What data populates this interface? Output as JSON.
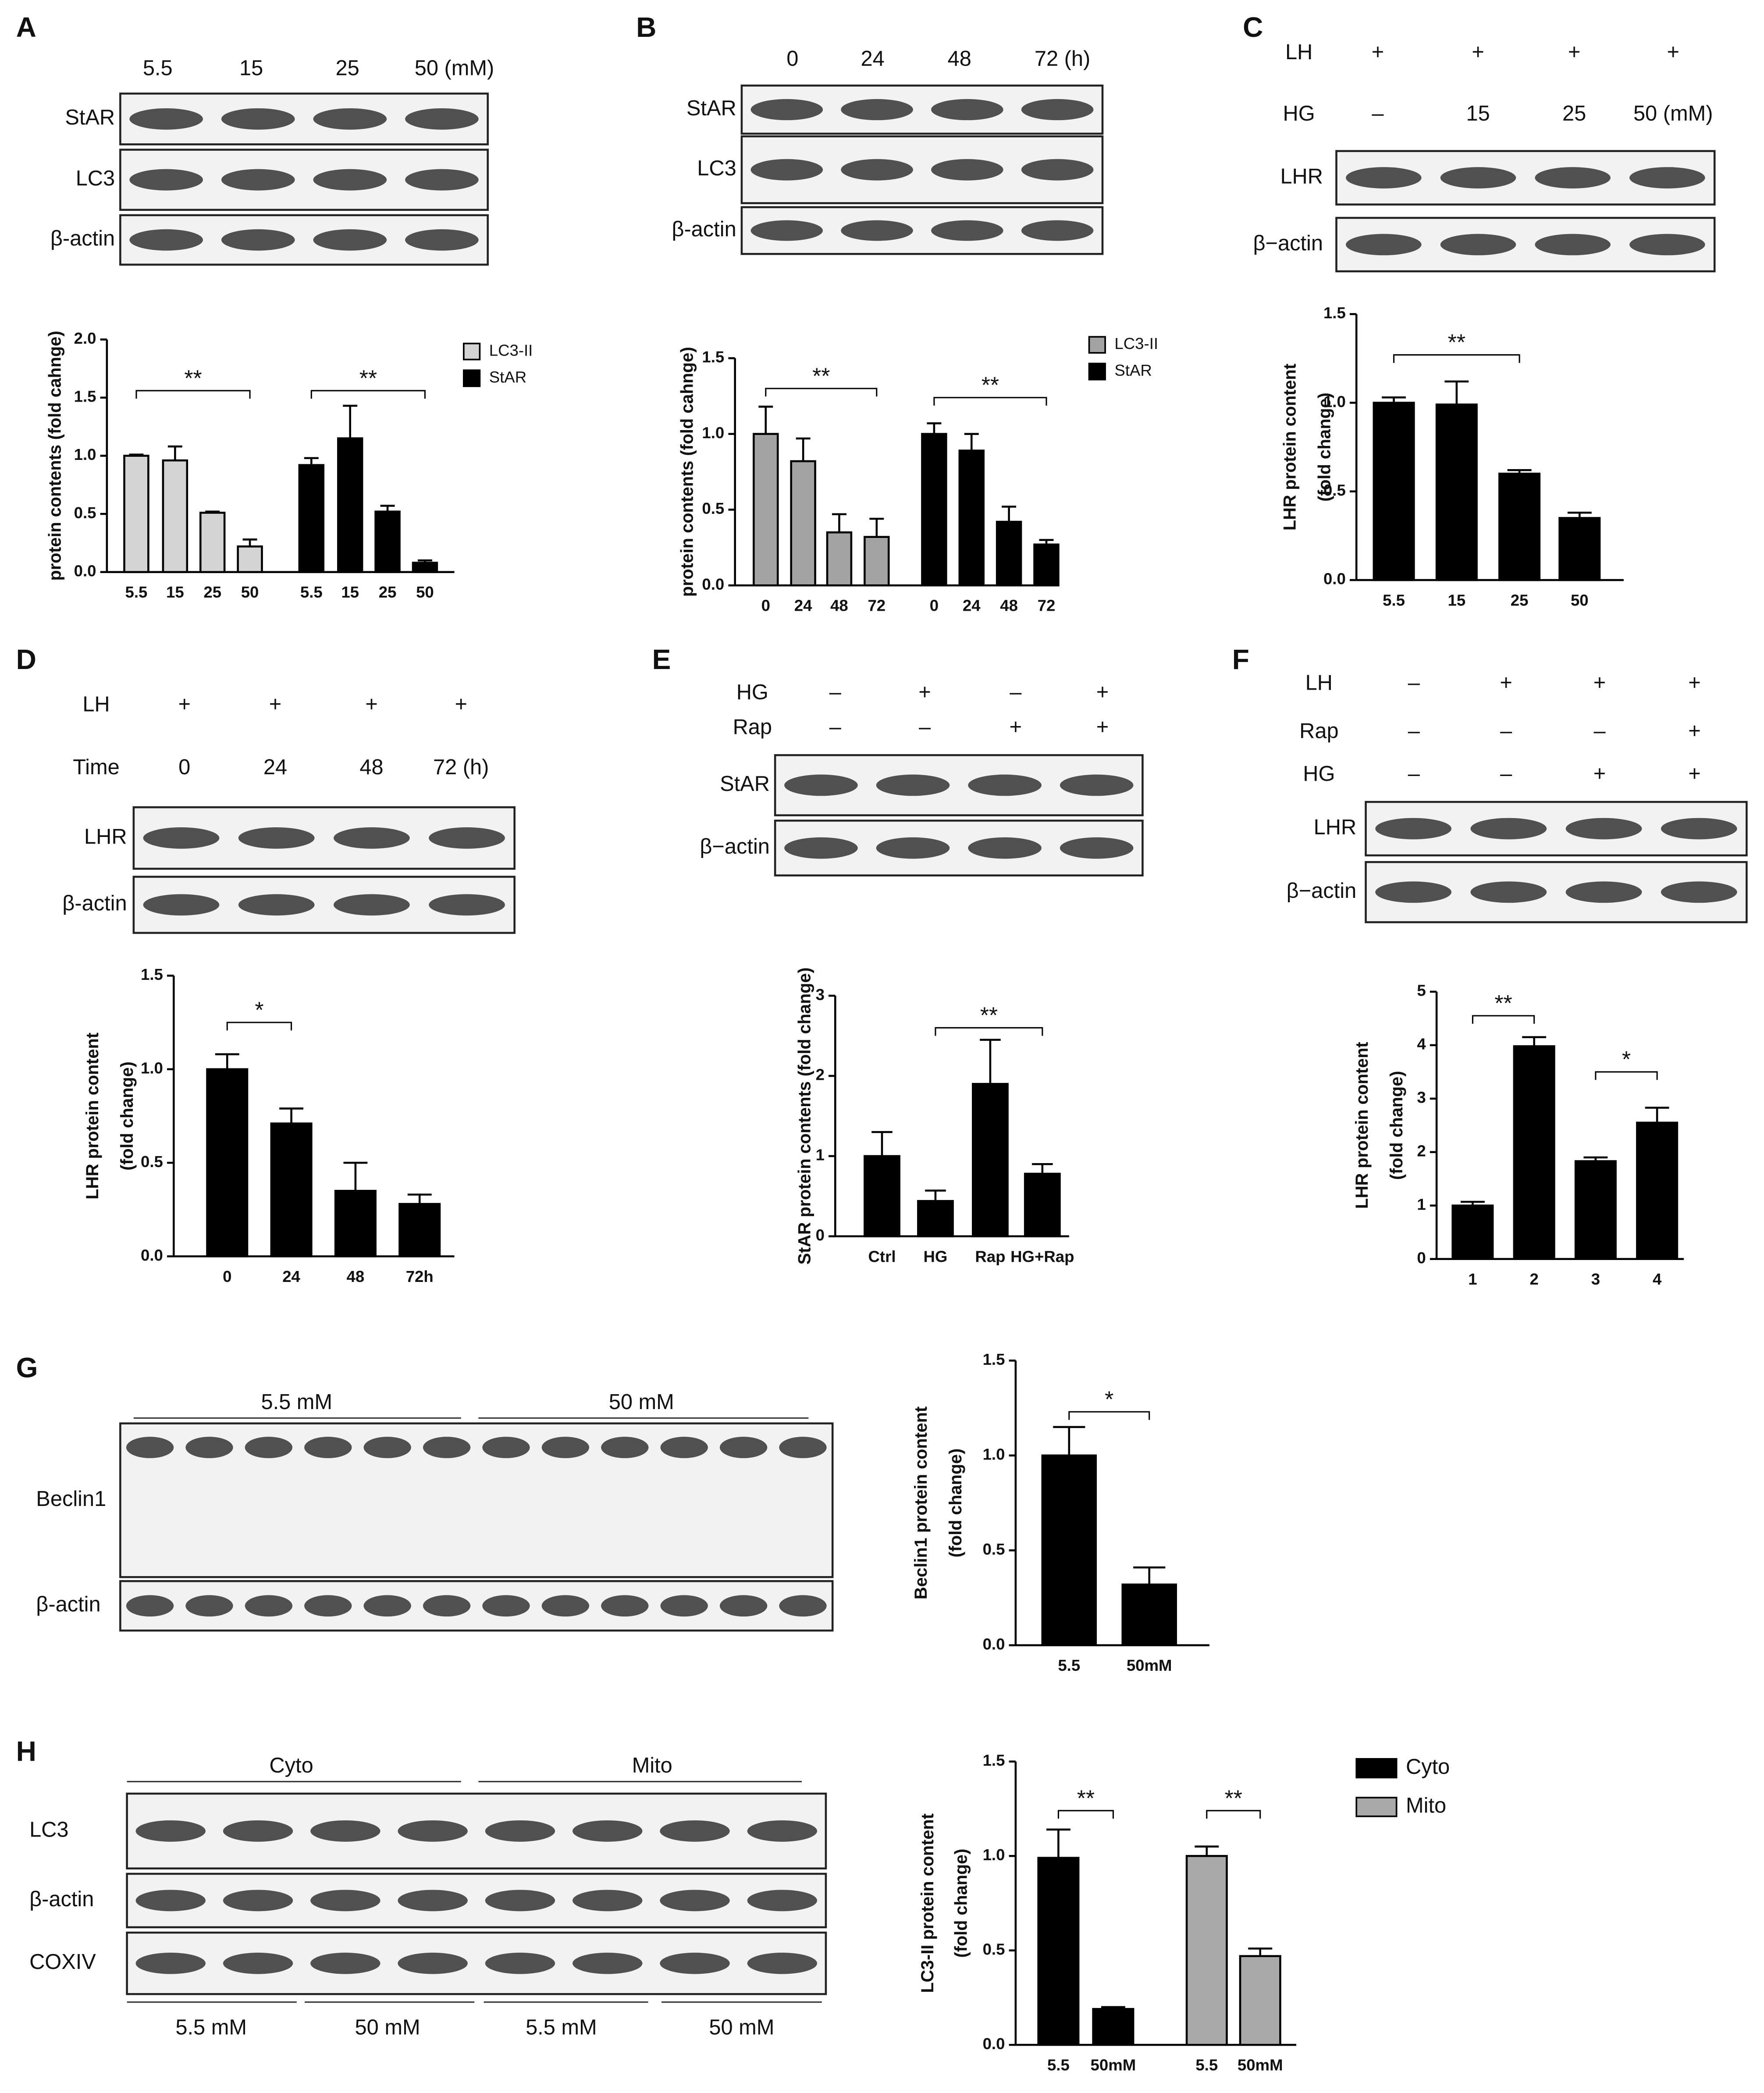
{
  "panels": [
    "A",
    "B",
    "C",
    "D",
    "E",
    "F",
    "G",
    "H"
  ],
  "blots": [
    {
      "columns": [
        "5.5",
        "15",
        "25",
        "50 (mM)"
      ],
      "rows": [
        "StAR",
        "LC3",
        "β-actin"
      ]
    },
    {
      "columns": [
        "0",
        "24",
        "48",
        "72 (h)"
      ],
      "rows": [
        "StAR",
        "LC3",
        "β-actin"
      ]
    },
    {
      "conditions": [
        {
          "name": "LH",
          "levels": [
            "+",
            "+",
            "+",
            "+"
          ]
        },
        {
          "name": "HG",
          "levels": [
            "–",
            "15",
            "25",
            "50 (mM)"
          ]
        }
      ],
      "rows": [
        "LHR",
        "β−actin"
      ]
    },
    {
      "conditions": [
        {
          "name": "LH",
          "levels": [
            "+",
            "+",
            "+",
            "+"
          ]
        },
        {
          "name": "Time",
          "levels": [
            "0",
            "24",
            "48",
            "72 (h)"
          ]
        }
      ],
      "rows": [
        "LHR",
        "β-actin"
      ]
    },
    {
      "conditions": [
        {
          "name": "HG",
          "levels": [
            "–",
            "+",
            "–",
            "+"
          ]
        },
        {
          "name": "Rap",
          "levels": [
            "–",
            "–",
            "+",
            "+"
          ]
        }
      ],
      "rows": [
        "StAR",
        "β−actin"
      ]
    },
    {
      "conditions": [
        {
          "name": "LH",
          "levels": [
            "–",
            "+",
            "+",
            "+"
          ]
        },
        {
          "name": "Rap",
          "levels": [
            "–",
            "–",
            "–",
            "+"
          ]
        },
        {
          "name": "HG",
          "levels": [
            "–",
            "–",
            "+",
            "+"
          ]
        }
      ],
      "rows": [
        "LHR",
        "β−actin"
      ]
    },
    {
      "groups": [
        "5.5 mM",
        "50 mM"
      ],
      "rows": [
        "Beclin1",
        "β-actin"
      ]
    },
    {
      "groups": [
        "Cyto",
        "Mito"
      ],
      "rows": [
        "LC3",
        "β-actin",
        "COXIV"
      ],
      "bottom_labels": [
        "5.5 mM",
        "50 mM",
        "5.5 mM",
        "50 mM"
      ]
    }
  ],
  "chart_data": [
    {
      "type": "bar",
      "ylabel": [
        "protein contents (fold cahnge)"
      ],
      "categories": [
        "5.5",
        "15",
        "25",
        "50"
      ],
      "series": [
        {
          "name": "LC3-II",
          "color": "#d4d4d4",
          "values": [
            1.0,
            0.96,
            0.51,
            0.22
          ],
          "errors": [
            0.01,
            0.12,
            0.01,
            0.06
          ]
        },
        {
          "name": "StAR",
          "color": "#000000",
          "values": [
            0.92,
            1.15,
            0.52,
            0.08
          ],
          "errors": [
            0.06,
            0.28,
            0.05,
            0.02
          ]
        }
      ],
      "ylim": [
        0,
        2
      ],
      "yticks": [
        {
          "value": 0,
          "label": "0.0"
        },
        {
          "value": 0.5,
          "label": "0.5"
        },
        {
          "value": 1,
          "label": "1.0"
        },
        {
          "value": 1.5,
          "label": "1.5"
        },
        {
          "value": 2,
          "label": "2.0"
        }
      ],
      "annotations": [
        "**",
        "**"
      ]
    },
    {
      "type": "bar",
      "ylabel": [
        "protein contents (fold cahnge)"
      ],
      "categories": [
        "0",
        "24",
        "48",
        "72"
      ],
      "series": [
        {
          "name": "LC3-II",
          "color": "#a3a3a3",
          "values": [
            1.0,
            0.82,
            0.35,
            0.32
          ],
          "errors": [
            0.18,
            0.15,
            0.12,
            0.12
          ]
        },
        {
          "name": "StAR",
          "color": "#000000",
          "values": [
            1.0,
            0.89,
            0.42,
            0.27
          ],
          "errors": [
            0.07,
            0.11,
            0.1,
            0.03
          ]
        }
      ],
      "ylim": [
        0,
        1.5
      ],
      "yticks": [
        {
          "value": 0,
          "label": "0.0"
        },
        {
          "value": 0.5,
          "label": "0.5"
        },
        {
          "value": 1,
          "label": "1.0"
        },
        {
          "value": 1.5,
          "label": "1.5"
        }
      ],
      "annotations": [
        "**",
        "**"
      ]
    },
    {
      "type": "bar",
      "ylabel": [
        "LHR protein content",
        "(fold change)"
      ],
      "categories": [
        "5.5",
        "15",
        "25",
        "50"
      ],
      "color": "#000000",
      "values": [
        1.0,
        0.99,
        0.6,
        0.35
      ],
      "errors": [
        0.03,
        0.13,
        0.02,
        0.03
      ],
      "ylim": [
        0,
        1.5
      ],
      "yticks": [
        {
          "value": 0,
          "label": "0.0"
        },
        {
          "value": 0.5,
          "label": "0.5"
        },
        {
          "value": 1,
          "label": "1.0"
        },
        {
          "value": 1.5,
          "label": "1.5"
        }
      ],
      "annotations": [
        "**"
      ]
    },
    {
      "type": "bar",
      "ylabel": [
        "LHR protein content",
        "(fold change)"
      ],
      "categories": [
        "0",
        "24",
        "48",
        "72h"
      ],
      "color": "#000000",
      "values": [
        1.0,
        0.71,
        0.35,
        0.28
      ],
      "errors": [
        0.08,
        0.08,
        0.15,
        0.05
      ],
      "ylim": [
        0,
        1.5
      ],
      "yticks": [
        {
          "value": 0,
          "label": "0.0"
        },
        {
          "value": 0.5,
          "label": "0.5"
        },
        {
          "value": 1,
          "label": "1.0"
        },
        {
          "value": 1.5,
          "label": "1.5"
        }
      ],
      "annotations": [
        "*"
      ]
    },
    {
      "type": "bar",
      "ylabel": [
        "StAR protein contents (fold change)"
      ],
      "categories": [
        "Ctrl",
        "HG",
        "Rap",
        "HG+Rap"
      ],
      "color": "#000000",
      "values": [
        1.0,
        0.44,
        1.9,
        0.78
      ],
      "errors": [
        0.3,
        0.13,
        0.55,
        0.12
      ],
      "ylim": [
        0,
        3
      ],
      "yticks": [
        0,
        1,
        2,
        3
      ],
      "annotations": [
        "**"
      ]
    },
    {
      "type": "bar",
      "ylabel": [
        "LHR protein content",
        "(fold change)"
      ],
      "categories": [
        "1",
        "2",
        "3",
        "4"
      ],
      "color": "#000000",
      "values": [
        1.0,
        3.98,
        1.83,
        2.55
      ],
      "errors": [
        0.07,
        0.17,
        0.07,
        0.28
      ],
      "ylim": [
        0,
        5
      ],
      "yticks": [
        0,
        1,
        2,
        3,
        4,
        5
      ],
      "annotations": [
        "**",
        "*"
      ]
    },
    {
      "type": "bar",
      "ylabel": [
        "Beclin1 protein content",
        "(fold change)"
      ],
      "categories": [
        "5.5",
        "50mM"
      ],
      "color": "#000000",
      "values": [
        1.0,
        0.32
      ],
      "errors": [
        0.15,
        0.09
      ],
      "ylim": [
        0,
        1.5
      ],
      "yticks": [
        {
          "value": 0,
          "label": "0.0"
        },
        {
          "value": 0.5,
          "label": "0.5"
        },
        {
          "value": 1,
          "label": "1.0"
        },
        {
          "value": 1.5,
          "label": "1.5"
        }
      ],
      "annotations": [
        "*"
      ]
    },
    {
      "type": "bar",
      "ylabel": [
        "LC3-II protein content",
        "(fold change)"
      ],
      "categories": [
        "5.5",
        "50mM"
      ],
      "series": [
        {
          "name": "Cyto",
          "color": "#000000",
          "values": [
            0.99,
            0.19
          ],
          "errors": [
            0.15,
            0.01
          ]
        },
        {
          "name": "Mito",
          "color": "#a9a9a9",
          "values": [
            1.0,
            0.47
          ],
          "errors": [
            0.05,
            0.04
          ]
        }
      ],
      "ylim": [
        0,
        1.5
      ],
      "yticks": [
        {
          "value": 0,
          "label": "0.0"
        },
        {
          "value": 0.5,
          "label": "0.5"
        },
        {
          "value": 1,
          "label": "1.0"
        },
        {
          "value": 1.5,
          "label": "1.5"
        }
      ],
      "annotations": [
        "**",
        "**"
      ]
    }
  ]
}
